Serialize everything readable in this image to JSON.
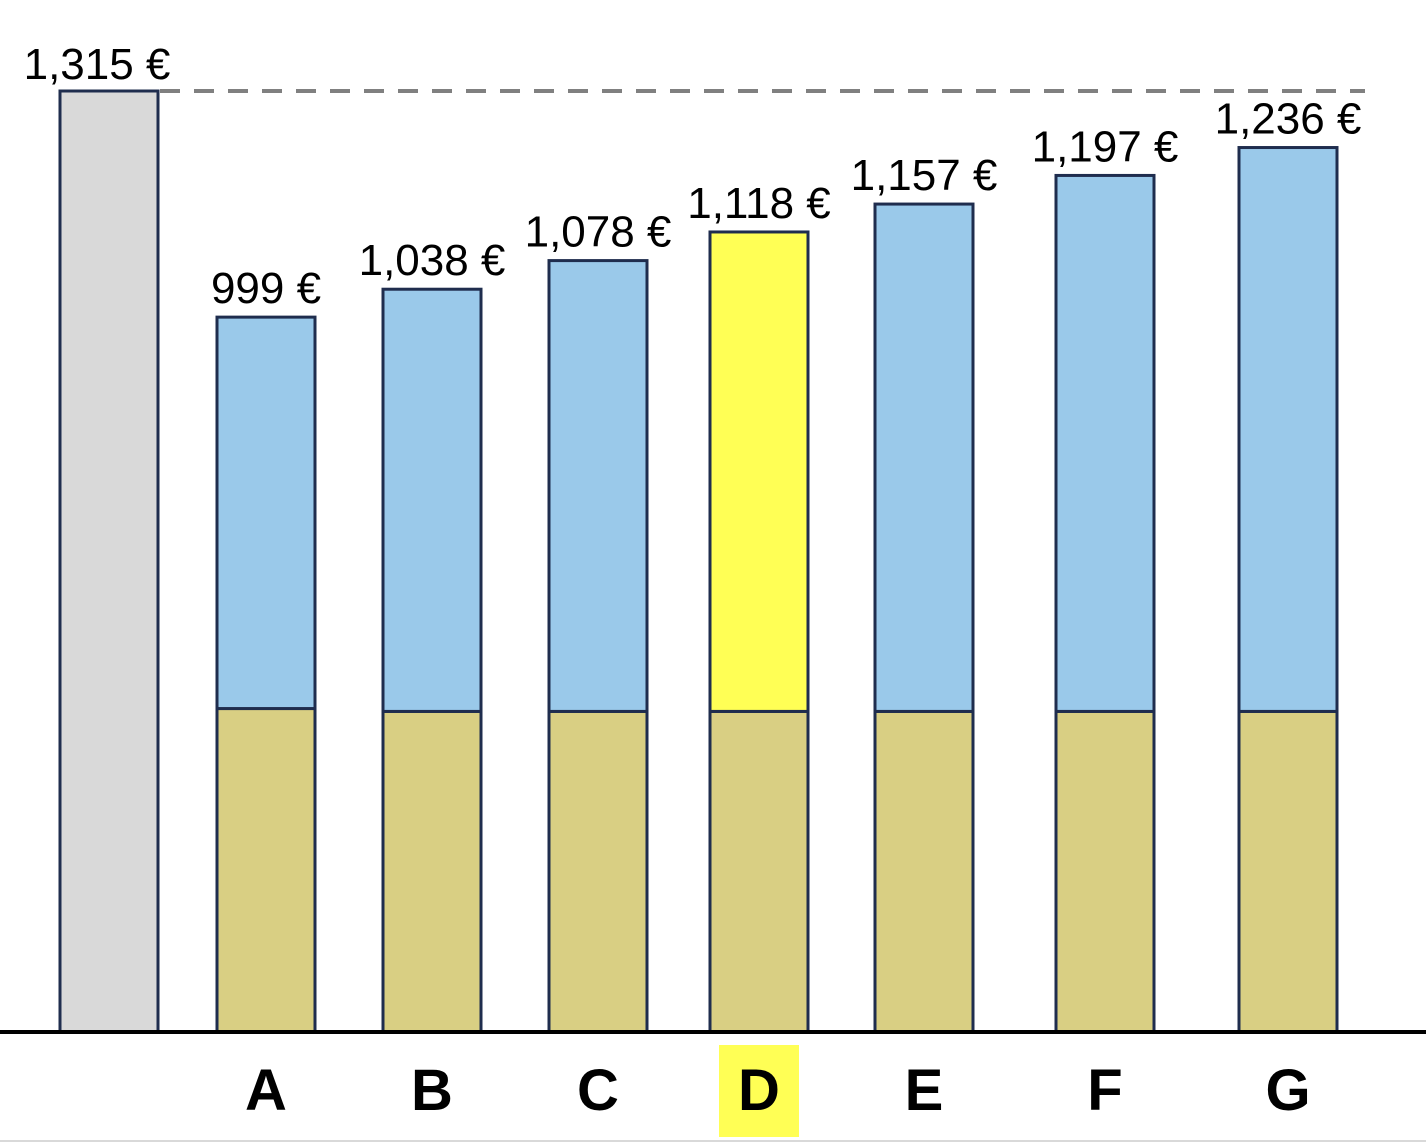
{
  "chart_data": {
    "type": "bar",
    "stacked": true,
    "reference": {
      "value": 1315,
      "label": "1,315 €",
      "color": "#d9d9d9",
      "line_style": "dashed"
    },
    "categories": [
      "A",
      "B",
      "C",
      "D",
      "E",
      "F",
      "G"
    ],
    "totals": [
      999,
      1038,
      1078,
      1118,
      1157,
      1197,
      1236
    ],
    "total_labels": [
      "999 €",
      "1,038 €",
      "1,078 €",
      "1,118 €",
      "1,157 €",
      "1,197 €",
      "1,236 €"
    ],
    "series": [
      {
        "values": [
          452,
          448,
          448,
          448,
          448,
          448,
          448
        ],
        "color": "#d9cf83"
      },
      {
        "values": [
          547,
          590,
          630,
          670,
          709,
          749,
          788
        ],
        "color": "#9ac9ea"
      }
    ],
    "highlight": {
      "category": "D",
      "color": "#ffff55"
    },
    "ylim": [
      0,
      1315
    ],
    "grid": false,
    "legend": "none"
  }
}
